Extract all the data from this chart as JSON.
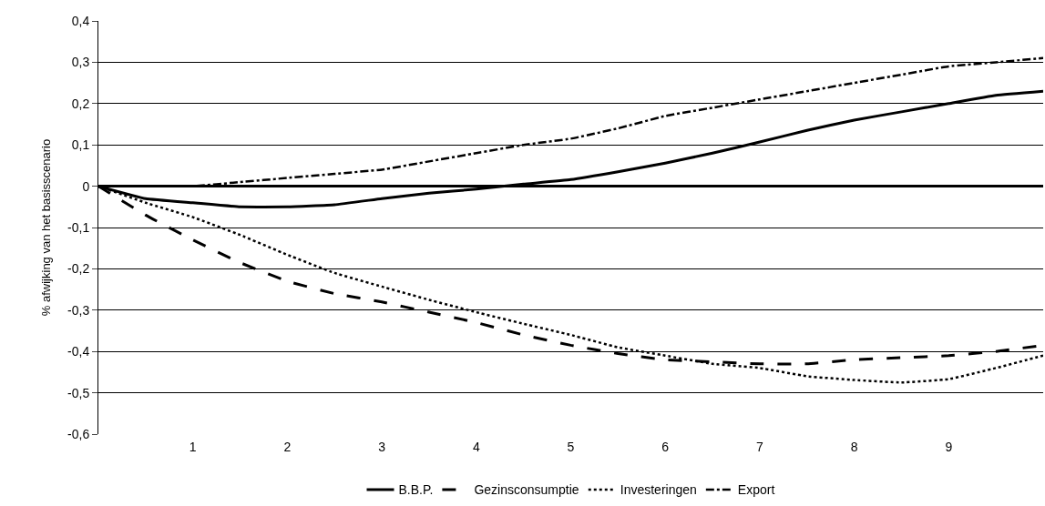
{
  "chart_data": {
    "type": "line",
    "ylabel": "% afwijking van het basisscenario",
    "x": [
      0,
      0.5,
      1,
      1.5,
      2,
      2.5,
      3,
      3.5,
      4,
      4.5,
      5,
      5.5,
      6,
      6.5,
      7,
      7.5,
      8,
      8.5,
      9,
      9.5,
      10
    ],
    "series": [
      {
        "name": "B.B.P.",
        "color": "#000000",
        "line_style": "solid",
        "values": [
          0,
          -0.03,
          -0.04,
          -0.05,
          -0.05,
          -0.045,
          -0.03,
          -0.017,
          -0.007,
          0.005,
          0.016,
          0.035,
          0.056,
          0.08,
          0.107,
          0.135,
          0.16,
          0.18,
          0.2,
          0.22,
          0.23
        ]
      },
      {
        "name": "Gezinsconsumptie",
        "color": "#000000",
        "line_style": "dashed",
        "values": [
          0,
          -0.07,
          -0.13,
          -0.185,
          -0.23,
          -0.26,
          -0.28,
          -0.305,
          -0.33,
          -0.36,
          -0.385,
          -0.405,
          -0.42,
          -0.425,
          -0.43,
          -0.43,
          -0.42,
          -0.415,
          -0.41,
          -0.4,
          -0.385
        ]
      },
      {
        "name": "Investeringen",
        "color": "#000000",
        "line_style": "dotted",
        "values": [
          0,
          -0.04,
          -0.075,
          -0.118,
          -0.166,
          -0.21,
          -0.243,
          -0.275,
          -0.305,
          -0.333,
          -0.36,
          -0.39,
          -0.41,
          -0.43,
          -0.44,
          -0.46,
          -0.469,
          -0.475,
          -0.467,
          -0.44,
          -0.41
        ]
      },
      {
        "name": "Export",
        "color": "#000000",
        "line_style": "dashdot",
        "values": [
          0,
          0,
          0,
          0.01,
          0.02,
          0.03,
          0.04,
          0.06,
          0.08,
          0.1,
          0.115,
          0.14,
          0.17,
          0.19,
          0.21,
          0.23,
          0.25,
          0.27,
          0.29,
          0.3,
          0.31
        ]
      }
    ],
    "xlim": [
      0,
      10
    ],
    "xticks": [
      1,
      2,
      3,
      4,
      5,
      6,
      7,
      8,
      9
    ],
    "ylim": [
      -0.6,
      0.4
    ],
    "yticks": [
      {
        "value": 0.4,
        "label": "0,4"
      },
      {
        "value": 0.3,
        "label": "0,3"
      },
      {
        "value": 0.2,
        "label": "0,2"
      },
      {
        "value": 0.1,
        "label": "0,1"
      },
      0,
      {
        "value": -0.1,
        "label": "-0,1"
      },
      {
        "value": -0.2,
        "label": "-0,2"
      },
      {
        "value": -0.3,
        "label": "-0,3"
      },
      {
        "value": -0.4,
        "label": "-0,4"
      },
      {
        "value": -0.5,
        "label": "-0,5"
      },
      {
        "value": -0.6,
        "label": "-0,6"
      }
    ],
    "grid": "y",
    "legend": "bottom"
  }
}
